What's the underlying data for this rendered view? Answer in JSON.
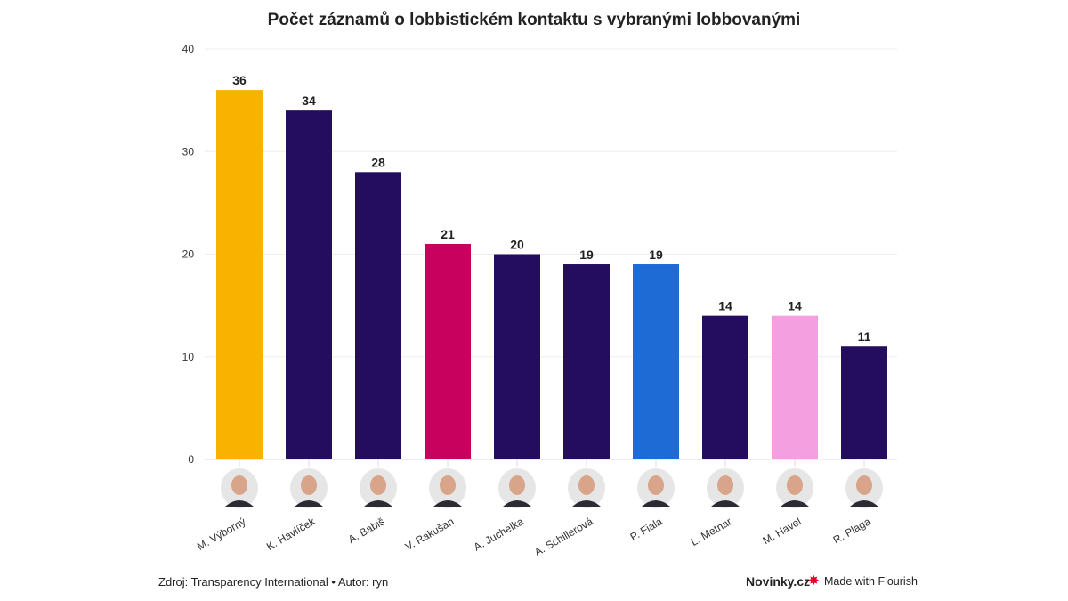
{
  "chart_data": {
    "type": "bar",
    "title": "Počet záznamů o lobbistickém kontaktu s vybranými lobbovanými",
    "categories": [
      "M. Výborný",
      "K. Havlíček",
      "A. Babiš",
      "V. Rakušan",
      "A. Juchelka",
      "A. Schillerová",
      "P. Fiala",
      "L. Metnar",
      "M. Havel",
      "R. Plaga"
    ],
    "values": [
      36,
      34,
      28,
      21,
      20,
      19,
      19,
      14,
      14,
      11
    ],
    "colors": [
      "#f9b200",
      "#240c5e",
      "#240c5e",
      "#c8005e",
      "#240c5e",
      "#240c5e",
      "#1e6bd6",
      "#240c5e",
      "#f4a0e0",
      "#240c5e"
    ],
    "ylim": [
      0,
      40
    ],
    "yticks": [
      0,
      10,
      20,
      30,
      40
    ],
    "grid": true,
    "xlabel": "",
    "ylabel": ""
  },
  "footer": {
    "source": "Zdroj: Transparency International • Autor: ryn",
    "brand": "Novinky.cz",
    "flourish": "Made with Flourish"
  }
}
